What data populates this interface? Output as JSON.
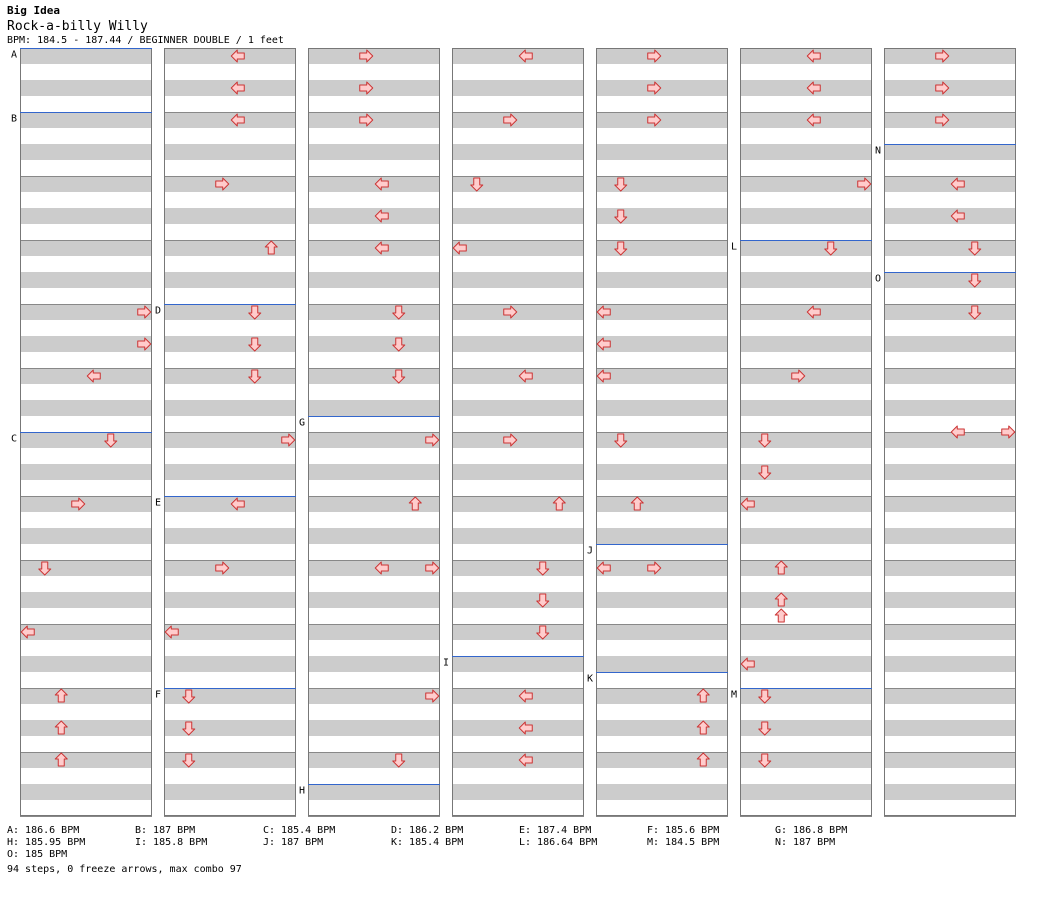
{
  "header": {
    "artist": "Big Idea",
    "title": "Rock-a-billy Willy",
    "info": "BPM: 184.5 - 187.44 / BEGINNER DOUBLE / 1 feet"
  },
  "chart_data": {
    "type": "table",
    "columns": 7,
    "beats_per_column": 24,
    "lanes": 8,
    "colors": {
      "light_row": "#ffffff",
      "dark_row": "#cccccc",
      "measure_line": "#888888",
      "bpm_line": "#3366cc",
      "arrow_fill": "#ffcccc",
      "arrow_stroke": "#cc3333"
    },
    "bpm_markers": [
      {
        "label": "A",
        "col": 0,
        "beat": 0
      },
      {
        "label": "B",
        "col": 0,
        "beat": 2
      },
      {
        "label": "C",
        "col": 0,
        "beat": 12
      },
      {
        "label": "D",
        "col": 1,
        "beat": 8
      },
      {
        "label": "E",
        "col": 1,
        "beat": 14
      },
      {
        "label": "F",
        "col": 1,
        "beat": 20
      },
      {
        "label": "G",
        "col": 2,
        "beat": 11.5
      },
      {
        "label": "H",
        "col": 2,
        "beat": 23
      },
      {
        "label": "I",
        "col": 3,
        "beat": 19
      },
      {
        "label": "J",
        "col": 4,
        "beat": 15.5
      },
      {
        "label": "K",
        "col": 4,
        "beat": 19.5
      },
      {
        "label": "L",
        "col": 5,
        "beat": 6
      },
      {
        "label": "M",
        "col": 5,
        "beat": 20
      },
      {
        "label": "N",
        "col": 6,
        "beat": 3
      },
      {
        "label": "O",
        "col": 6,
        "beat": 7
      }
    ],
    "notes": [
      {
        "col": 0,
        "beat": 8,
        "lane": 7,
        "dir": "right"
      },
      {
        "col": 0,
        "beat": 9,
        "lane": 7,
        "dir": "right"
      },
      {
        "col": 0,
        "beat": 10,
        "lane": 4,
        "dir": "left"
      },
      {
        "col": 0,
        "beat": 12,
        "lane": 5,
        "dir": "down"
      },
      {
        "col": 0,
        "beat": 14,
        "lane": 3,
        "dir": "right"
      },
      {
        "col": 0,
        "beat": 16,
        "lane": 1,
        "dir": "down"
      },
      {
        "col": 0,
        "beat": 18,
        "lane": 0,
        "dir": "left"
      },
      {
        "col": 0,
        "beat": 20,
        "lane": 2,
        "dir": "up"
      },
      {
        "col": 0,
        "beat": 21,
        "lane": 2,
        "dir": "up"
      },
      {
        "col": 0,
        "beat": 22,
        "lane": 2,
        "dir": "up"
      },
      {
        "col": 1,
        "beat": 0,
        "lane": 4,
        "dir": "left"
      },
      {
        "col": 1,
        "beat": 1,
        "lane": 4,
        "dir": "left"
      },
      {
        "col": 1,
        "beat": 2,
        "lane": 4,
        "dir": "left"
      },
      {
        "col": 1,
        "beat": 4,
        "lane": 3,
        "dir": "right"
      },
      {
        "col": 1,
        "beat": 6,
        "lane": 6,
        "dir": "up"
      },
      {
        "col": 1,
        "beat": 8,
        "lane": 5,
        "dir": "down"
      },
      {
        "col": 1,
        "beat": 9,
        "lane": 5,
        "dir": "down"
      },
      {
        "col": 1,
        "beat": 10,
        "lane": 5,
        "dir": "down"
      },
      {
        "col": 1,
        "beat": 12,
        "lane": 7,
        "dir": "right"
      },
      {
        "col": 1,
        "beat": 14,
        "lane": 4,
        "dir": "left"
      },
      {
        "col": 1,
        "beat": 16,
        "lane": 3,
        "dir": "right"
      },
      {
        "col": 1,
        "beat": 18,
        "lane": 0,
        "dir": "left"
      },
      {
        "col": 1,
        "beat": 20,
        "lane": 1,
        "dir": "down"
      },
      {
        "col": 1,
        "beat": 21,
        "lane": 1,
        "dir": "down"
      },
      {
        "col": 1,
        "beat": 22,
        "lane": 1,
        "dir": "down"
      },
      {
        "col": 2,
        "beat": 0,
        "lane": 3,
        "dir": "right"
      },
      {
        "col": 2,
        "beat": 1,
        "lane": 3,
        "dir": "right"
      },
      {
        "col": 2,
        "beat": 2,
        "lane": 3,
        "dir": "right"
      },
      {
        "col": 2,
        "beat": 4,
        "lane": 4,
        "dir": "left"
      },
      {
        "col": 2,
        "beat": 5,
        "lane": 4,
        "dir": "left"
      },
      {
        "col": 2,
        "beat": 6,
        "lane": 4,
        "dir": "left"
      },
      {
        "col": 2,
        "beat": 8,
        "lane": 5,
        "dir": "down"
      },
      {
        "col": 2,
        "beat": 9,
        "lane": 5,
        "dir": "down"
      },
      {
        "col": 2,
        "beat": 10,
        "lane": 5,
        "dir": "down"
      },
      {
        "col": 2,
        "beat": 12,
        "lane": 7,
        "dir": "right"
      },
      {
        "col": 2,
        "beat": 14,
        "lane": 6,
        "dir": "up"
      },
      {
        "col": 2,
        "beat": 16,
        "lane": 4,
        "dir": "left"
      },
      {
        "col": 2,
        "beat": 16,
        "lane": 7,
        "dir": "right"
      },
      {
        "col": 2,
        "beat": 20,
        "lane": 7,
        "dir": "right"
      },
      {
        "col": 2,
        "beat": 22,
        "lane": 5,
        "dir": "down"
      },
      {
        "col": 3,
        "beat": 0,
        "lane": 4,
        "dir": "left"
      },
      {
        "col": 3,
        "beat": 2,
        "lane": 3,
        "dir": "right"
      },
      {
        "col": 3,
        "beat": 4,
        "lane": 1,
        "dir": "down"
      },
      {
        "col": 3,
        "beat": 6,
        "lane": 0,
        "dir": "left"
      },
      {
        "col": 3,
        "beat": 8,
        "lane": 3,
        "dir": "right"
      },
      {
        "col": 3,
        "beat": 10,
        "lane": 4,
        "dir": "left"
      },
      {
        "col": 3,
        "beat": 12,
        "lane": 3,
        "dir": "right"
      },
      {
        "col": 3,
        "beat": 14,
        "lane": 6,
        "dir": "up"
      },
      {
        "col": 3,
        "beat": 16,
        "lane": 5,
        "dir": "down"
      },
      {
        "col": 3,
        "beat": 17,
        "lane": 5,
        "dir": "down"
      },
      {
        "col": 3,
        "beat": 18,
        "lane": 5,
        "dir": "down"
      },
      {
        "col": 3,
        "beat": 20,
        "lane": 4,
        "dir": "left"
      },
      {
        "col": 3,
        "beat": 21,
        "lane": 4,
        "dir": "left"
      },
      {
        "col": 3,
        "beat": 22,
        "lane": 4,
        "dir": "left"
      },
      {
        "col": 4,
        "beat": 0,
        "lane": 3,
        "dir": "right"
      },
      {
        "col": 4,
        "beat": 1,
        "lane": 3,
        "dir": "right"
      },
      {
        "col": 4,
        "beat": 2,
        "lane": 3,
        "dir": "right"
      },
      {
        "col": 4,
        "beat": 4,
        "lane": 1,
        "dir": "down"
      },
      {
        "col": 4,
        "beat": 5,
        "lane": 1,
        "dir": "down"
      },
      {
        "col": 4,
        "beat": 6,
        "lane": 1,
        "dir": "down"
      },
      {
        "col": 4,
        "beat": 8,
        "lane": 0,
        "dir": "left"
      },
      {
        "col": 4,
        "beat": 9,
        "lane": 0,
        "dir": "left"
      },
      {
        "col": 4,
        "beat": 10,
        "lane": 0,
        "dir": "left"
      },
      {
        "col": 4,
        "beat": 12,
        "lane": 1,
        "dir": "down"
      },
      {
        "col": 4,
        "beat": 14,
        "lane": 2,
        "dir": "up"
      },
      {
        "col": 4,
        "beat": 16,
        "lane": 0,
        "dir": "left"
      },
      {
        "col": 4,
        "beat": 16,
        "lane": 3,
        "dir": "right"
      },
      {
        "col": 4,
        "beat": 20,
        "lane": 6,
        "dir": "up"
      },
      {
        "col": 4,
        "beat": 21,
        "lane": 6,
        "dir": "up"
      },
      {
        "col": 4,
        "beat": 22,
        "lane": 6,
        "dir": "up"
      },
      {
        "col": 5,
        "beat": 0,
        "lane": 4,
        "dir": "left"
      },
      {
        "col": 5,
        "beat": 1,
        "lane": 4,
        "dir": "left"
      },
      {
        "col": 5,
        "beat": 2,
        "lane": 4,
        "dir": "left"
      },
      {
        "col": 5,
        "beat": 4,
        "lane": 7,
        "dir": "right"
      },
      {
        "col": 5,
        "beat": 6,
        "lane": 5,
        "dir": "down"
      },
      {
        "col": 5,
        "beat": 8,
        "lane": 4,
        "dir": "left"
      },
      {
        "col": 5,
        "beat": 10,
        "lane": 3,
        "dir": "right"
      },
      {
        "col": 5,
        "beat": 12,
        "lane": 1,
        "dir": "down"
      },
      {
        "col": 5,
        "beat": 13,
        "lane": 1,
        "dir": "down"
      },
      {
        "col": 5,
        "beat": 14,
        "lane": 0,
        "dir": "left"
      },
      {
        "col": 5,
        "beat": 16,
        "lane": 2,
        "dir": "up"
      },
      {
        "col": 5,
        "beat": 17,
        "lane": 2,
        "dir": "up"
      },
      {
        "col": 5,
        "beat": 17.5,
        "lane": 2,
        "dir": "up"
      },
      {
        "col": 5,
        "beat": 19,
        "lane": 0,
        "dir": "left"
      },
      {
        "col": 5,
        "beat": 20,
        "lane": 1,
        "dir": "down"
      },
      {
        "col": 5,
        "beat": 21,
        "lane": 1,
        "dir": "down"
      },
      {
        "col": 5,
        "beat": 22,
        "lane": 1,
        "dir": "down"
      },
      {
        "col": 6,
        "beat": 0,
        "lane": 3,
        "dir": "right"
      },
      {
        "col": 6,
        "beat": 1,
        "lane": 3,
        "dir": "right"
      },
      {
        "col": 6,
        "beat": 2,
        "lane": 3,
        "dir": "right"
      },
      {
        "col": 6,
        "beat": 4,
        "lane": 4,
        "dir": "left"
      },
      {
        "col": 6,
        "beat": 5,
        "lane": 4,
        "dir": "left"
      },
      {
        "col": 6,
        "beat": 6,
        "lane": 5,
        "dir": "down"
      },
      {
        "col": 6,
        "beat": 7,
        "lane": 5,
        "dir": "down"
      },
      {
        "col": 6,
        "beat": 8,
        "lane": 5,
        "dir": "down"
      },
      {
        "col": 6,
        "beat": 11.75,
        "lane": 4,
        "dir": "left"
      },
      {
        "col": 6,
        "beat": 11.75,
        "lane": 7,
        "dir": "right"
      }
    ]
  },
  "legend": [
    "A: 186.6 BPM",
    "B: 187 BPM",
    "C: 185.4 BPM",
    "D: 186.2 BPM",
    "E: 187.4 BPM",
    "F: 185.6 BPM",
    "G: 186.8 BPM",
    "H: 185.95 BPM",
    "I: 185.8 BPM",
    "J: 187 BPM",
    "K: 185.4 BPM",
    "L: 186.64 BPM",
    "M: 184.5 BPM",
    "N: 187 BPM",
    "O: 185 BPM"
  ],
  "summary": "94 steps, 0 freeze arrows, max combo 97"
}
